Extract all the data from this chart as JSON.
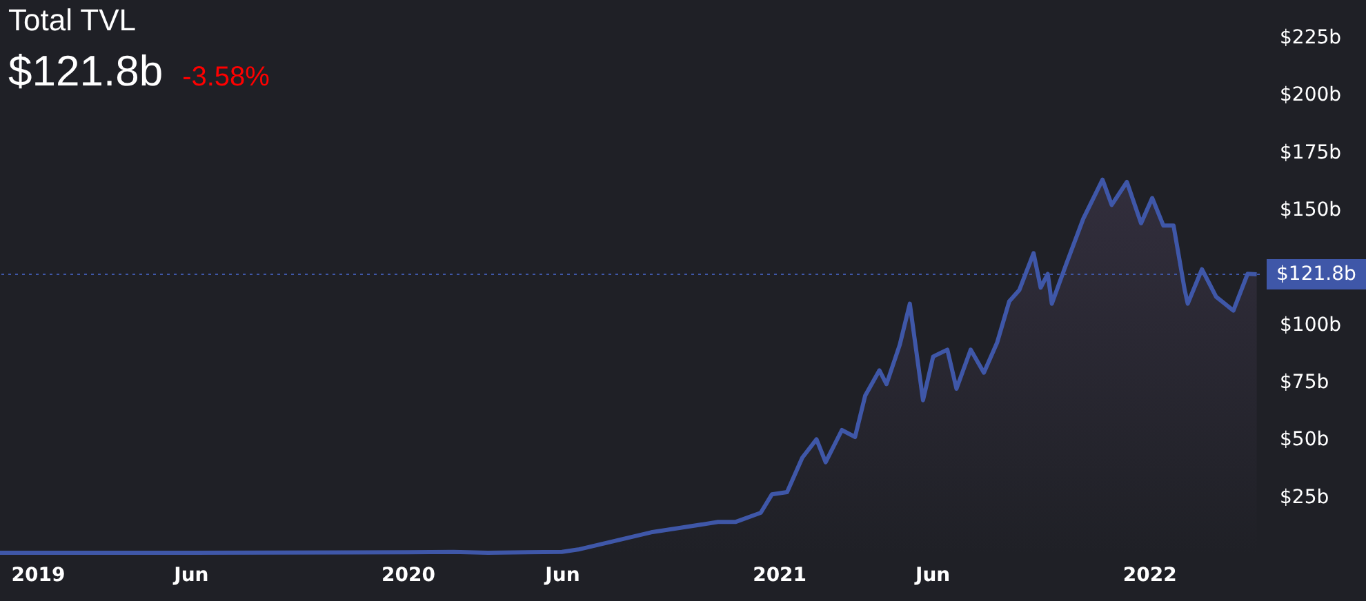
{
  "chart_data": {
    "type": "area",
    "title": "Total TVL",
    "subtitle": "$121.8b",
    "annotations": [
      "-3.58%"
    ],
    "x": [
      "2018-11-25",
      "2019-06-01",
      "2020-01-01",
      "2020-02-15",
      "2020-03-20",
      "2020-06-01",
      "2020-06-17",
      "2020-08-28",
      "2020-11-02",
      "2020-11-19",
      "2020-12-14",
      "2020-12-25",
      "2021-01-09",
      "2021-01-24",
      "2021-02-07",
      "2021-02-16",
      "2021-03-04",
      "2021-03-17",
      "2021-03-27",
      "2021-04-10",
      "2021-04-17",
      "2021-04-30",
      "2021-05-10",
      "2021-05-23",
      "2021-06-02",
      "2021-06-16",
      "2021-06-25",
      "2021-07-09",
      "2021-07-22",
      "2021-08-04",
      "2021-08-16",
      "2021-08-26",
      "2021-09-09",
      "2021-09-16",
      "2021-09-23",
      "2021-09-27",
      "2021-10-11",
      "2021-10-28",
      "2021-11-16",
      "2021-11-25",
      "2021-12-10",
      "2021-12-24",
      "2022-01-04",
      "2022-01-15",
      "2022-01-25",
      "2022-02-05",
      "2022-02-08",
      "2022-02-22",
      "2022-03-08",
      "2022-03-25",
      "2022-04-08",
      "2022-04-17"
    ],
    "series": [
      {
        "color": "#3f57a8",
        "values": [
          0.6,
          0.6,
          0.8,
          1,
          0.6,
          1,
          2,
          9.5,
          14,
          14,
          18,
          26,
          27,
          42,
          50,
          40,
          54,
          51,
          69,
          80,
          74,
          91,
          109,
          67,
          86,
          89,
          72,
          89,
          79,
          92,
          110,
          115,
          131,
          116,
          122,
          109,
          126,
          146,
          163,
          152,
          162,
          144,
          155,
          143,
          143,
          115,
          109,
          124,
          112,
          106,
          122,
          121.8
        ]
      }
    ],
    "xlim": [
      "2018-11-25",
      "2022-04-20"
    ],
    "ylim": [
      0,
      240
    ],
    "xticks": [
      {
        "value": "2019-01-01",
        "label": "2019"
      },
      {
        "value": "2019-06-01",
        "label": "Jun"
      },
      {
        "value": "2020-01-01",
        "label": "2020"
      },
      {
        "value": "2020-06-01",
        "label": "Jun"
      },
      {
        "value": "2021-01-01",
        "label": "2021"
      },
      {
        "value": "2021-06-01",
        "label": "Jun"
      },
      {
        "value": "2022-01-01",
        "label": "2022"
      }
    ],
    "yticks": [
      {
        "value": 25,
        "label": "$25b"
      },
      {
        "value": 50,
        "label": "$50b"
      },
      {
        "value": 75,
        "label": "$75b"
      },
      {
        "value": 100,
        "label": "$100b"
      },
      {
        "value": 150,
        "label": "$150b"
      },
      {
        "value": 175,
        "label": "$175b"
      },
      {
        "value": 200,
        "label": "$200b"
      },
      {
        "value": 225,
        "label": "$225b"
      }
    ],
    "ref_lines": [
      {
        "axis": "y",
        "value": 121.8,
        "label": "$121.8b",
        "line_style": "dotted",
        "color": "#3f57a8"
      }
    ],
    "grid": false
  }
}
